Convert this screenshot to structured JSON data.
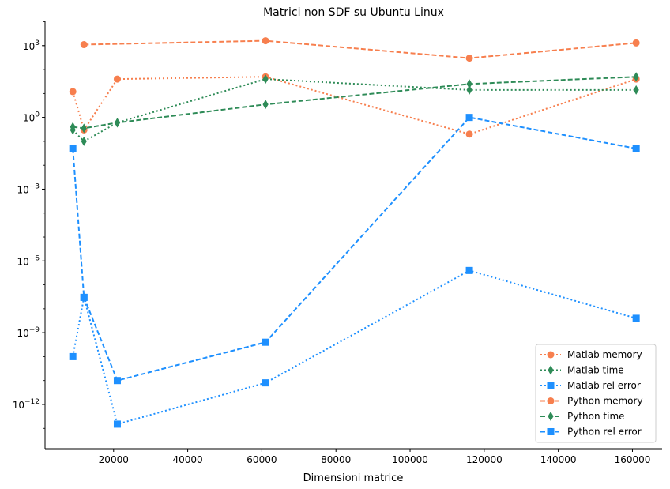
{
  "chart_data": {
    "type": "line",
    "title": "Matrici non SDF su Ubuntu Linux",
    "xlabel": "Dimensioni matrice",
    "ylabel": "",
    "yscale": "log",
    "xlim": [
      1500,
      168000
    ],
    "ylim_exp": [
      -13.85,
      4.05
    ],
    "x_ticks": [
      20000,
      40000,
      60000,
      80000,
      100000,
      120000,
      140000,
      160000
    ],
    "x_tick_labels": [
      "20000",
      "40000",
      "60000",
      "80000",
      "100000",
      "120000",
      "140000",
      "160000"
    ],
    "y_tick_exps": [
      3,
      0,
      -3,
      -6,
      -9,
      -12
    ],
    "y_tick_bases": [
      "10",
      "10",
      "10",
      "10",
      "10",
      "10"
    ],
    "y_tick_sups": [
      "3",
      "0",
      "−3",
      "−6",
      "−9",
      "−12"
    ],
    "grid": false,
    "legend_position": "lower-right",
    "colors": {
      "memory": "#f77f4e",
      "time": "#2e8b57",
      "rel_error": "#1e90ff"
    },
    "series": [
      {
        "name": "Matlab memory",
        "color": "#f77f4e",
        "linestyle": "dotted",
        "marker": "circle",
        "x": [
          9000,
          12000,
          21000,
          61000,
          116000,
          161000
        ],
        "y": [
          12,
          0.3,
          40,
          50,
          0.2,
          40
        ]
      },
      {
        "name": "Matlab time",
        "color": "#2e8b57",
        "linestyle": "dotted",
        "marker": "diamond",
        "x": [
          9000,
          12000,
          21000,
          61000,
          116000,
          161000
        ],
        "y": [
          0.3,
          0.1,
          0.6,
          40,
          14,
          14
        ]
      },
      {
        "name": "Matlab rel error",
        "color": "#1e90ff",
        "linestyle": "dotted",
        "marker": "square",
        "x": [
          9000,
          12000,
          21000,
          61000,
          116000,
          161000
        ],
        "y": [
          1e-10,
          3e-08,
          1.5e-13,
          8e-12,
          4e-07,
          4e-09
        ]
      },
      {
        "name": "Python memory",
        "color": "#f77f4e",
        "linestyle": "dashed",
        "marker": "circle",
        "x": [
          12000,
          61000,
          116000,
          161000
        ],
        "y": [
          1100,
          1600,
          300,
          1300
        ]
      },
      {
        "name": "Python time",
        "color": "#2e8b57",
        "linestyle": "dashed",
        "marker": "diamond",
        "x": [
          9000,
          12000,
          21000,
          61000,
          116000,
          161000
        ],
        "y": [
          0.4,
          0.35,
          0.6,
          3.5,
          25,
          50
        ]
      },
      {
        "name": "Python rel error",
        "color": "#1e90ff",
        "linestyle": "dashed",
        "marker": "square",
        "x": [
          9000,
          12000,
          21000,
          61000,
          116000,
          161000
        ],
        "y": [
          0.05,
          3e-08,
          1e-11,
          4e-10,
          1,
          0.05
        ]
      }
    ]
  }
}
